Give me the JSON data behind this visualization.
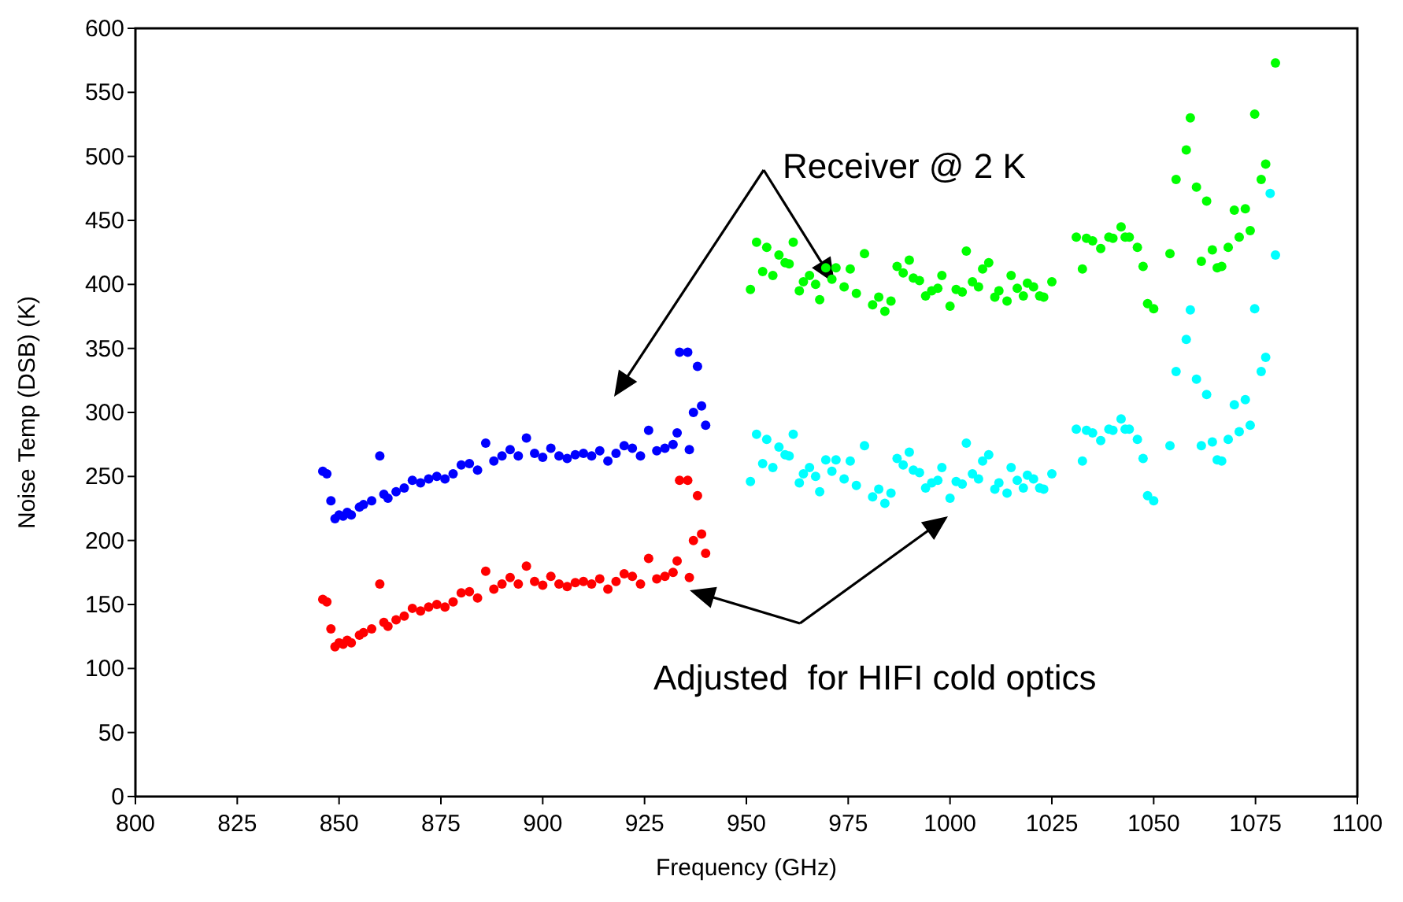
{
  "chart_data": {
    "type": "scatter",
    "xlabel": "Frequency (GHz)",
    "ylabel": "Noise Temp (DSB) (K)",
    "xlim": [
      800,
      1100
    ],
    "xticks": [
      800,
      825,
      850,
      875,
      900,
      925,
      950,
      975,
      1000,
      1025,
      1050,
      1075,
      1100
    ],
    "ylim": [
      0,
      600
    ],
    "yticks": [
      0,
      50,
      100,
      150,
      200,
      250,
      300,
      350,
      400,
      450,
      500,
      550,
      600
    ],
    "grid": false,
    "marker": "circle",
    "annotations": [
      "Receiver @ 2 K",
      "Adjusted  for HIFI cold optics"
    ],
    "series": [
      {
        "color": "#0000ff",
        "x": [
          846,
          847,
          848,
          849,
          850,
          851,
          852,
          853,
          855,
          856,
          858,
          860,
          861,
          862,
          864,
          866,
          868,
          870,
          872,
          874,
          876,
          878,
          880,
          882,
          884,
          886,
          888,
          890,
          892,
          894,
          896,
          898,
          900,
          902,
          904,
          906,
          908,
          910,
          912,
          914,
          916,
          918,
          920,
          922,
          924,
          926,
          928,
          930,
          932,
          933,
          933.6,
          935.6,
          936,
          937,
          938,
          939,
          940
        ],
        "values": [
          254,
          252,
          231,
          217,
          220,
          219,
          222,
          220,
          226,
          228,
          231,
          266,
          236,
          233,
          238,
          241,
          247,
          245,
          248,
          250,
          248,
          252,
          259,
          260,
          255,
          276,
          262,
          266,
          271,
          266,
          280,
          268,
          265,
          272,
          266,
          264,
          267,
          268,
          266,
          270,
          262,
          268,
          274,
          272,
          266,
          286,
          270,
          272,
          275,
          284,
          347,
          347,
          271,
          300,
          336,
          305,
          290
        ]
      },
      {
        "color": "#ff0000",
        "x": [
          846,
          847,
          848,
          849,
          850,
          851,
          852,
          853,
          855,
          856,
          858,
          860,
          861,
          862,
          864,
          866,
          868,
          870,
          872,
          874,
          876,
          878,
          880,
          882,
          884,
          886,
          888,
          890,
          892,
          894,
          896,
          898,
          900,
          902,
          904,
          906,
          908,
          910,
          912,
          914,
          916,
          918,
          920,
          922,
          924,
          926,
          928,
          930,
          932,
          933,
          933.6,
          935.6,
          936,
          937,
          938,
          939,
          940
        ],
        "values": [
          154,
          152,
          131,
          117,
          120,
          119,
          122,
          120,
          126,
          128,
          131,
          166,
          136,
          133,
          138,
          141,
          147,
          145,
          148,
          150,
          148,
          152,
          159,
          160,
          155,
          176,
          162,
          166,
          171,
          166,
          180,
          168,
          165,
          172,
          166,
          164,
          167,
          168,
          166,
          170,
          162,
          168,
          174,
          172,
          166,
          186,
          170,
          172,
          175,
          184,
          247,
          247,
          171,
          200,
          235,
          205,
          190
        ]
      },
      {
        "color": "#00ff00",
        "x": [
          951,
          952.5,
          954,
          955,
          956.5,
          958,
          959.5,
          960.5,
          961.5,
          963,
          964,
          965.5,
          967,
          968,
          969.5,
          971,
          972,
          974,
          975.5,
          977,
          979,
          981,
          982.5,
          984,
          985.5,
          987,
          988.5,
          990,
          991,
          992.5,
          994,
          995.5,
          997,
          998,
          1000,
          1001.5,
          1003,
          1004,
          1005.5,
          1007,
          1008,
          1009.5,
          1011,
          1012,
          1014,
          1015,
          1016.5,
          1018,
          1019,
          1020.5,
          1022,
          1023,
          1025,
          1031,
          1032.5,
          1033.5,
          1035,
          1037,
          1039,
          1040,
          1042,
          1043,
          1044,
          1046,
          1047.4,
          1048.5,
          1050,
          1054,
          1055.5,
          1058,
          1059,
          1060.5,
          1061.7,
          1063,
          1064.4,
          1065.6,
          1066.7,
          1068.3,
          1069.8,
          1071,
          1072.5,
          1073.7,
          1074.8,
          1076.4,
          1077.5,
          1079.9
        ],
        "values": [
          396,
          433,
          410,
          429,
          407,
          423,
          417,
          416,
          433,
          395,
          402,
          407,
          400,
          388,
          413,
          404,
          413,
          398,
          412,
          393,
          424,
          384,
          390,
          379,
          387,
          414,
          409,
          419,
          405,
          403,
          391,
          395,
          397,
          407,
          383,
          396,
          394,
          426,
          402,
          398,
          412,
          417,
          390,
          395,
          387,
          407,
          397,
          391,
          401,
          398,
          391,
          390,
          402,
          437,
          412,
          436,
          434,
          428,
          437,
          436,
          445,
          437,
          437,
          429,
          414,
          385,
          381,
          424,
          482,
          505,
          530,
          476,
          418,
          465,
          427,
          413,
          414,
          429,
          458,
          437,
          459,
          442,
          533,
          482,
          494,
          573
        ]
      },
      {
        "color": "#00ffff",
        "x": [
          951,
          952.5,
          954,
          955,
          956.5,
          958,
          959.5,
          960.5,
          961.5,
          963,
          964,
          965.5,
          967,
          968,
          969.5,
          971,
          972,
          974,
          975.5,
          977,
          979,
          981,
          982.5,
          984,
          985.5,
          987,
          988.5,
          990,
          991,
          992.5,
          994,
          995.5,
          997,
          998,
          1000,
          1001.5,
          1003,
          1004,
          1005.5,
          1007,
          1008,
          1009.5,
          1011,
          1012,
          1014,
          1015,
          1016.5,
          1018,
          1019,
          1020.5,
          1022,
          1023,
          1025,
          1031,
          1032.5,
          1033.5,
          1035,
          1037,
          1039,
          1040,
          1042,
          1043,
          1044,
          1046,
          1047.4,
          1048.5,
          1050,
          1054,
          1055.5,
          1058,
          1059,
          1060.5,
          1061.7,
          1063,
          1064.4,
          1065.6,
          1066.7,
          1068.3,
          1069.8,
          1071,
          1072.5,
          1073.7,
          1074.8,
          1076.4,
          1077.5,
          1078.6,
          1079.9
        ],
        "values": [
          246,
          283,
          260,
          279,
          257,
          273,
          267,
          266,
          283,
          245,
          252,
          257,
          250,
          238,
          263,
          254,
          263,
          248,
          262,
          243,
          274,
          234,
          240,
          229,
          237,
          264,
          259,
          269,
          255,
          253,
          241,
          245,
          247,
          257,
          233,
          246,
          244,
          276,
          252,
          248,
          262,
          267,
          240,
          245,
          237,
          257,
          247,
          241,
          251,
          248,
          241,
          240,
          252,
          287,
          262,
          286,
          284,
          278,
          287,
          286,
          295,
          287,
          287,
          279,
          264,
          235,
          231,
          274,
          332,
          357,
          380,
          326,
          274,
          314,
          277,
          263,
          262,
          279,
          306,
          285,
          310,
          290,
          381,
          332,
          343,
          471,
          423
        ]
      }
    ]
  }
}
